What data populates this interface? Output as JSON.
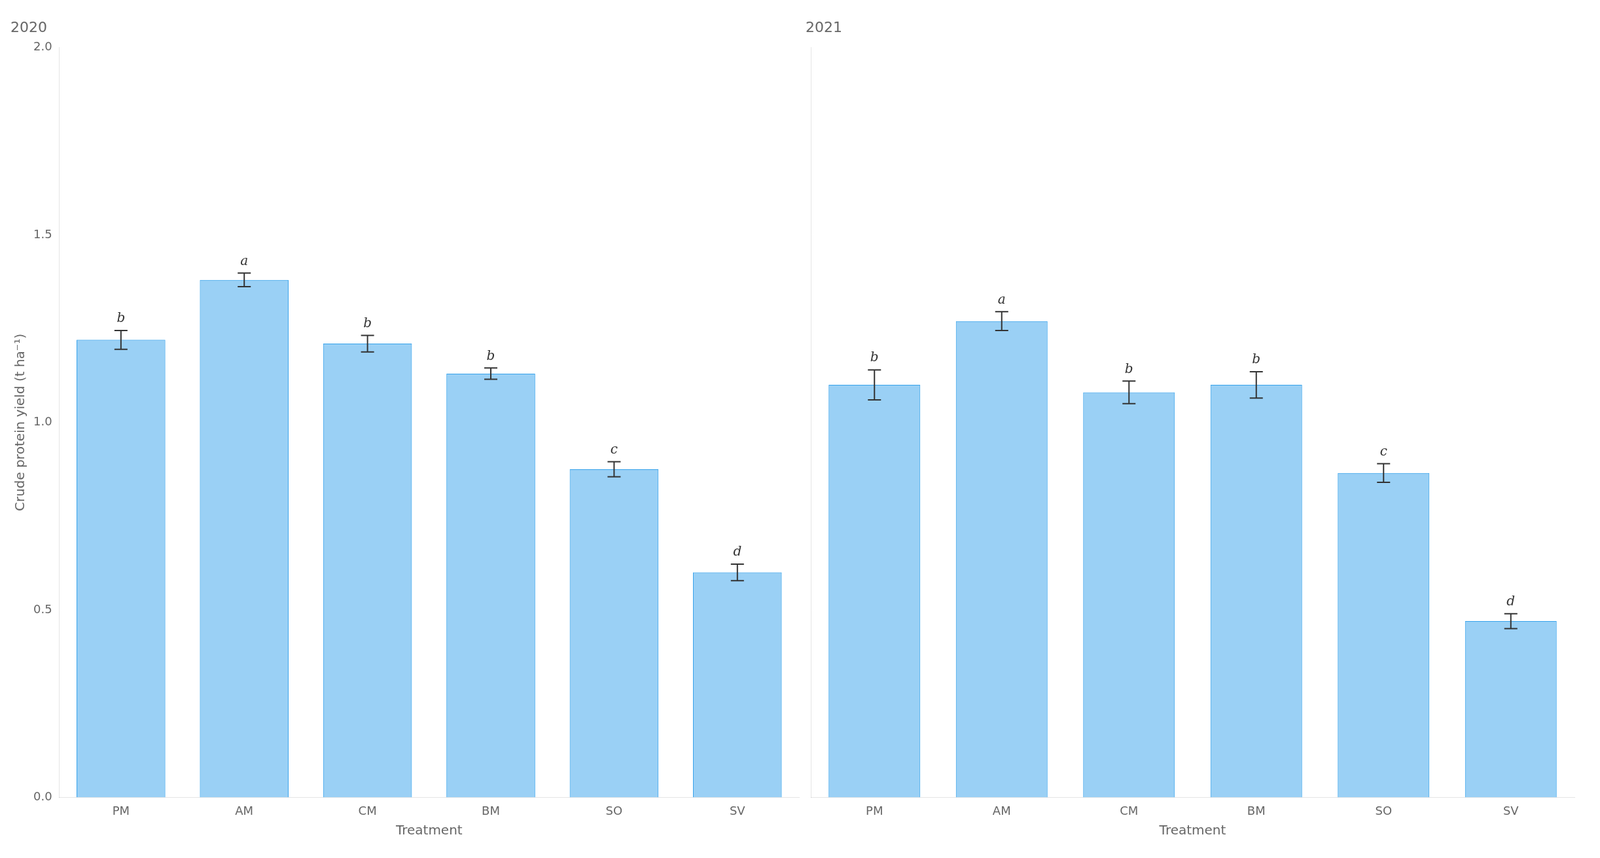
{
  "chart_data": [
    {
      "type": "bar",
      "title": "2020",
      "categories": [
        "PM",
        "AM",
        "CM",
        "BM",
        "SO",
        "SV"
      ],
      "values": [
        1.22,
        1.38,
        1.21,
        1.13,
        0.875,
        0.6
      ],
      "errors": [
        0.025,
        0.018,
        0.022,
        0.015,
        0.02,
        0.022
      ],
      "letters": [
        "b",
        "a",
        "b",
        "b",
        "c",
        "d"
      ],
      "xlabel": "Treatment",
      "ylabel": "Crude protein yield (t ha⁻¹)",
      "ylim": [
        0.0,
        2.0
      ],
      "yticks": [
        {
          "value": 0.0,
          "label": "0.0"
        },
        0.5,
        {
          "value": 1.0,
          "label": "1.0"
        },
        1.5,
        {
          "value": 2.0,
          "label": "2.0"
        }
      ],
      "grid": false
    },
    {
      "type": "bar",
      "title": "2021",
      "categories": [
        "PM",
        "AM",
        "CM",
        "BM",
        "SO",
        "SV"
      ],
      "values": [
        1.1,
        1.27,
        1.08,
        1.1,
        0.865,
        0.47
      ],
      "errors": [
        0.04,
        0.025,
        0.03,
        0.035,
        0.025,
        0.02
      ],
      "letters": [
        "b",
        "a",
        "b",
        "b",
        "c",
        "d"
      ],
      "xlabel": "Treatment",
      "ylim": [
        0.0,
        2.0
      ],
      "yticks": [
        {
          "value": 0.0,
          "label": "0.0"
        },
        0.5,
        {
          "value": 1.0,
          "label": "1.0"
        },
        1.5,
        {
          "value": 2.0,
          "label": "2.0"
        }
      ],
      "grid": false,
      "tick_labels": "x"
    }
  ]
}
